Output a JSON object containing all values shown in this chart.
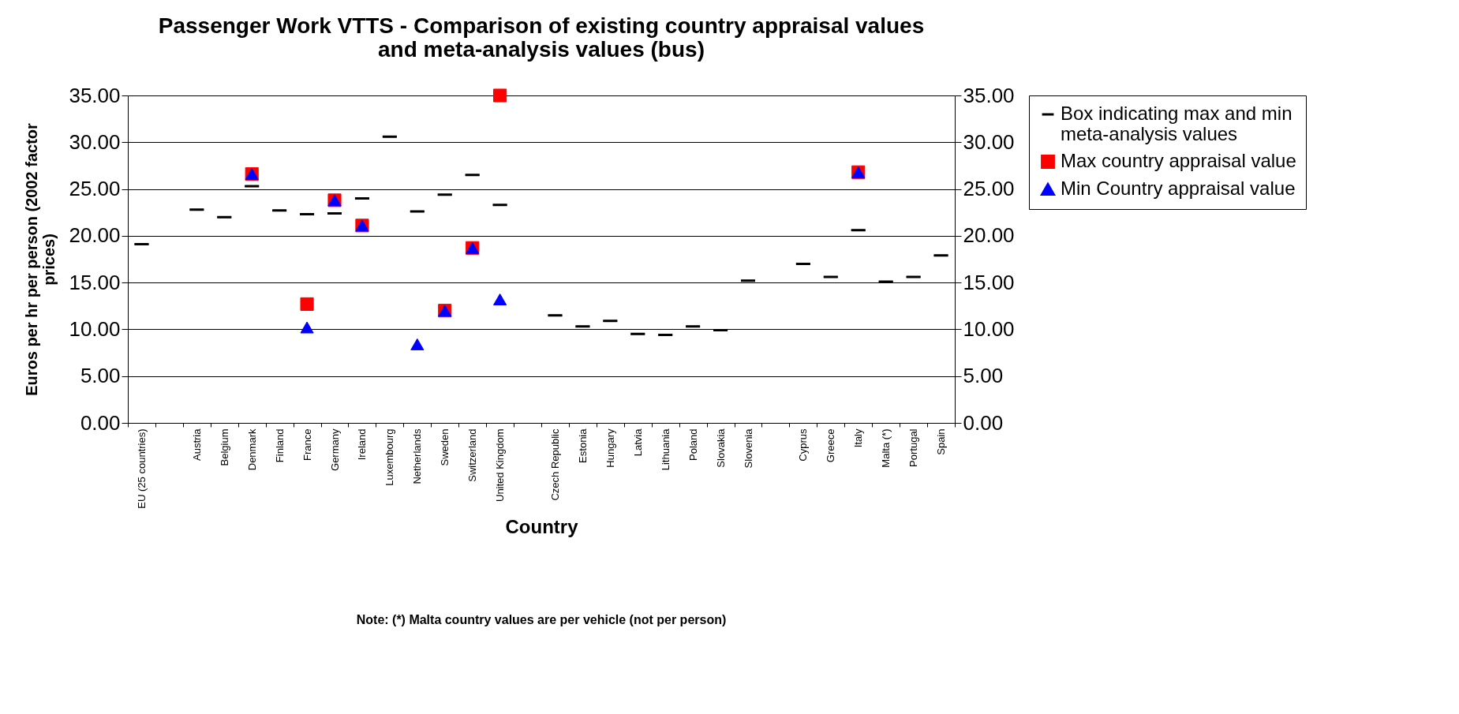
{
  "chart_data": {
    "type": "scatter",
    "title": "Passenger Work VTTS - Comparison of existing country appraisal values and meta-analysis values (bus)",
    "xlabel": "Country",
    "ylabel": "Euros per hr per person (2002 factor prices)",
    "annotations": [
      "Note: (*) Malta country values are per vehicle (not per person)"
    ],
    "categories": [
      "EU (25 countries)",
      null,
      "Austria",
      "Belgium",
      "Denmark",
      "Finland",
      "France",
      "Germany",
      "Ireland",
      "Luxembourg",
      "Netherlands",
      "Sweden",
      "Switzerland",
      "United Kingdom",
      null,
      "Czech Republic",
      "Estonia",
      "Hungary",
      "Latvia",
      "Lithuania",
      "Poland",
      "Slovakia",
      "Slovenia",
      null,
      "Cyprus",
      "Greece",
      "Italy",
      "Malta (*)",
      "Portugal",
      "Spain"
    ],
    "ylim": [
      0,
      35
    ],
    "yticks": [
      {
        "value": 0,
        "label": "0.00"
      },
      {
        "value": 5,
        "label": "5.00"
      },
      {
        "value": 10,
        "label": "10.00"
      },
      {
        "value": 15,
        "label": "15.00"
      },
      {
        "value": 20,
        "label": "20.00"
      },
      {
        "value": 25,
        "label": "25.00"
      },
      {
        "value": 30,
        "label": "30.00"
      },
      {
        "value": 35,
        "label": "35.00"
      }
    ],
    "y2lim": [
      0,
      35
    ],
    "y2ticks": [
      {
        "value": 0,
        "label": "0.00"
      },
      {
        "value": 5,
        "label": "5.00"
      },
      {
        "value": 10,
        "label": "10.00"
      },
      {
        "value": 15,
        "label": "15.00"
      },
      {
        "value": 20,
        "label": "20.00"
      },
      {
        "value": 25,
        "label": "25.00"
      },
      {
        "value": 30,
        "label": "30.00"
      },
      {
        "value": 35,
        "label": "35.00"
      }
    ],
    "grid": "y",
    "legend": "right",
    "series": [
      {
        "name": "Box indicating max and min meta-analysis values",
        "type": "box",
        "color": "#000000",
        "boxes": [
          {
            "low": 19.1,
            "q1": 19.1,
            "median": 19.1,
            "q3": 19.1,
            "high": 19.1
          },
          null,
          {
            "low": 22.8,
            "q1": 22.8,
            "median": 22.8,
            "q3": 22.8,
            "high": 22.8
          },
          {
            "low": 22.0,
            "q1": 22.0,
            "median": 22.0,
            "q3": 22.0,
            "high": 22.0
          },
          {
            "low": 25.3,
            "q1": 25.3,
            "median": 25.3,
            "q3": 25.3,
            "high": 25.3
          },
          {
            "low": 22.7,
            "q1": 22.7,
            "median": 22.7,
            "q3": 22.7,
            "high": 22.7
          },
          {
            "low": 22.3,
            "q1": 22.3,
            "median": 22.3,
            "q3": 22.3,
            "high": 22.3
          },
          {
            "low": 22.4,
            "q1": 22.4,
            "median": 22.4,
            "q3": 22.4,
            "high": 22.4
          },
          {
            "low": 24.0,
            "q1": 24.0,
            "median": 24.0,
            "q3": 24.0,
            "high": 24.0
          },
          {
            "low": 30.6,
            "q1": 30.6,
            "median": 30.6,
            "q3": 30.6,
            "high": 30.6
          },
          {
            "low": 22.6,
            "q1": 22.6,
            "median": 22.6,
            "q3": 22.6,
            "high": 22.6
          },
          {
            "low": 24.4,
            "q1": 24.4,
            "median": 24.4,
            "q3": 24.4,
            "high": 24.4
          },
          {
            "low": 26.5,
            "q1": 26.5,
            "median": 26.5,
            "q3": 26.5,
            "high": 26.5
          },
          {
            "low": 23.3,
            "q1": 23.3,
            "median": 23.3,
            "q3": 23.3,
            "high": 23.3
          },
          null,
          {
            "low": 11.5,
            "q1": 11.5,
            "median": 11.5,
            "q3": 11.5,
            "high": 11.5
          },
          {
            "low": 10.3,
            "q1": 10.3,
            "median": 10.3,
            "q3": 10.3,
            "high": 10.3
          },
          {
            "low": 10.9,
            "q1": 10.9,
            "median": 10.9,
            "q3": 10.9,
            "high": 10.9
          },
          {
            "low": 9.5,
            "q1": 9.5,
            "median": 9.5,
            "q3": 9.5,
            "high": 9.5
          },
          {
            "low": 9.4,
            "q1": 9.4,
            "median": 9.4,
            "q3": 9.4,
            "high": 9.4
          },
          {
            "low": 10.3,
            "q1": 10.3,
            "median": 10.3,
            "q3": 10.3,
            "high": 10.3
          },
          {
            "low": 9.9,
            "q1": 9.9,
            "median": 9.9,
            "q3": 9.9,
            "high": 9.9
          },
          {
            "low": 15.2,
            "q1": 15.2,
            "median": 15.2,
            "q3": 15.2,
            "high": 15.2
          },
          null,
          {
            "low": 17.0,
            "q1": 17.0,
            "median": 17.0,
            "q3": 17.0,
            "high": 17.0
          },
          {
            "low": 15.6,
            "q1": 15.6,
            "median": 15.6,
            "q3": 15.6,
            "high": 15.6
          },
          {
            "low": 20.6,
            "q1": 20.6,
            "median": 20.6,
            "q3": 20.6,
            "high": 20.6
          },
          {
            "low": 15.1,
            "q1": 15.1,
            "median": 15.1,
            "q3": 15.1,
            "high": 15.1
          },
          {
            "low": 15.6,
            "q1": 15.6,
            "median": 15.6,
            "q3": 15.6,
            "high": 15.6
          },
          {
            "low": 17.9,
            "q1": 17.9,
            "median": 17.9,
            "q3": 17.9,
            "high": 17.9
          }
        ]
      },
      {
        "name": "Max country appraisal value",
        "marker": "square",
        "color": "#ff0000",
        "values": [
          null,
          null,
          null,
          null,
          26.6,
          null,
          12.7,
          23.8,
          21.1,
          null,
          null,
          12.0,
          18.7,
          35.0,
          null,
          null,
          null,
          null,
          null,
          null,
          null,
          null,
          null,
          null,
          null,
          null,
          26.8,
          null,
          null,
          null
        ]
      },
      {
        "name": "Min Country appraisal value",
        "marker": "triangle",
        "color": "#0000ff",
        "values": [
          null,
          null,
          null,
          null,
          26.6,
          null,
          10.2,
          23.8,
          21.1,
          null,
          8.4,
          12.0,
          18.7,
          13.2,
          null,
          null,
          null,
          null,
          null,
          null,
          null,
          null,
          null,
          null,
          null,
          null,
          26.8,
          null,
          null,
          null
        ]
      }
    ]
  }
}
